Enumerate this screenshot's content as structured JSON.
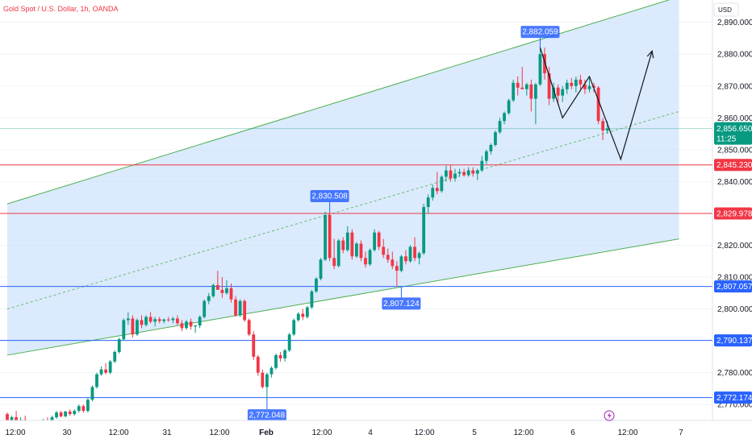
{
  "header": {
    "symbol_title": "Gold Spot / U.S. Dollar, 1h, OANDA"
  },
  "axis": {
    "currency": "USD"
  },
  "chart_data": {
    "type": "candlestick",
    "title": "Gold Spot / U.S. Dollar, 1h, OANDA",
    "ylabel": "USD",
    "ylim": [
      2765,
      2897
    ],
    "y_ticks": [
      "2,770.000",
      "2,780.000",
      "2,790.000",
      "2,800.000",
      "2,810.000",
      "2,820.000",
      "2,830.000",
      "2,840.000",
      "2,850.000",
      "2,860.000",
      "2,870.000",
      "2,880.000",
      "2,890.000"
    ],
    "x_ticks": [
      "12:00",
      "30",
      "12:00",
      "31",
      "12:00",
      "Feb",
      "12:00",
      "4",
      "12:00",
      "5",
      "12:00",
      "6",
      "12:00",
      "7"
    ],
    "current_price": {
      "value": "2,856.650",
      "countdown": "11:25"
    },
    "horizontal_levels": [
      {
        "value": 2845.23,
        "label": "2,845.230",
        "color": "#f23645"
      },
      {
        "value": 2829.978,
        "label": "2,829.978",
        "color": "#f23645"
      },
      {
        "value": 2807.057,
        "label": "2,807.057",
        "color": "#2962ff"
      },
      {
        "value": 2790.137,
        "label": "2,790.137",
        "color": "#2962ff"
      },
      {
        "value": 2772.174,
        "label": "2,772.174",
        "color": "#2962ff"
      }
    ],
    "callouts": [
      {
        "label": "2,882.059",
        "value": 2882.059,
        "bar": 119
      },
      {
        "label": "2,830.508",
        "value": 2830.508,
        "bar": 72
      },
      {
        "label": "2,807.124",
        "value": 2807.124,
        "bar": 88
      },
      {
        "label": "2,772.048",
        "value": 2772.048,
        "bar": 58
      }
    ],
    "candles": [
      [
        2767,
        2767.5,
        2763,
        2765
      ],
      [
        2765,
        2766.5,
        2764,
        2766
      ],
      [
        2766,
        2768,
        2764.5,
        2764.8
      ],
      [
        2764.8,
        2766,
        2763.5,
        2765.2
      ],
      [
        2765.2,
        2766.5,
        2764,
        2764.5
      ],
      [
        2764.5,
        2765,
        2762,
        2763.2
      ],
      [
        2763.2,
        2764,
        2761.5,
        2762
      ],
      [
        2762,
        2764,
        2761,
        2763.5
      ],
      [
        2763.5,
        2765.5,
        2763,
        2765
      ],
      [
        2765,
        2766,
        2764,
        2764.8
      ],
      [
        2764.8,
        2766.5,
        2764,
        2766
      ],
      [
        2766,
        2768,
        2765.5,
        2767.5
      ],
      [
        2767.5,
        2768,
        2766,
        2766.3
      ],
      [
        2766.3,
        2768,
        2766,
        2767.8
      ],
      [
        2767.8,
        2768.5,
        2766.5,
        2767
      ],
      [
        2767,
        2768.5,
        2766.5,
        2768
      ],
      [
        2768,
        2770,
        2767.5,
        2769.5
      ],
      [
        2769.5,
        2770,
        2767.5,
        2768
      ],
      [
        2768,
        2772,
        2767.5,
        2771.5
      ],
      [
        2771.5,
        2776,
        2771,
        2775.5
      ],
      [
        2775.5,
        2780,
        2775,
        2779.5
      ],
      [
        2779.5,
        2782,
        2779,
        2781
      ],
      [
        2781,
        2783,
        2779.5,
        2780
      ],
      [
        2780,
        2784,
        2779.5,
        2783.5
      ],
      [
        2783.5,
        2787,
        2783,
        2786.5
      ],
      [
        2786.5,
        2791,
        2786,
        2790.5
      ],
      [
        2790.5,
        2797,
        2790,
        2796.5
      ],
      [
        2796.5,
        2799,
        2795,
        2797
      ],
      [
        2797,
        2798,
        2791,
        2792
      ],
      [
        2792,
        2797,
        2791.5,
        2796.5
      ],
      [
        2796.5,
        2798,
        2794,
        2795
      ],
      [
        2795,
        2798,
        2794.5,
        2797.5
      ],
      [
        2797.5,
        2799,
        2795.5,
        2796
      ],
      [
        2796,
        2797.5,
        2794.5,
        2796.8
      ],
      [
        2796.8,
        2797.5,
        2795.5,
        2796.2
      ],
      [
        2796.2,
        2797,
        2795.5,
        2796.7
      ],
      [
        2796.7,
        2797.5,
        2796,
        2796.5
      ],
      [
        2796.5,
        2797.5,
        2795.5,
        2797
      ],
      [
        2797,
        2798,
        2795,
        2795.5
      ],
      [
        2795.5,
        2796.5,
        2793,
        2794
      ],
      [
        2794,
        2796.5,
        2793.5,
        2796
      ],
      [
        2796,
        2797,
        2793.5,
        2794.5
      ],
      [
        2794.5,
        2795,
        2792.5,
        2794.8
      ],
      [
        2794.8,
        2798,
        2794,
        2797.5
      ],
      [
        2797.5,
        2803,
        2797,
        2802.5
      ],
      [
        2802.5,
        2805,
        2801.5,
        2804
      ],
      [
        2804,
        2808,
        2803.5,
        2807.5
      ],
      [
        2807.5,
        2812,
        2806.5,
        2806
      ],
      [
        2806,
        2810,
        2803.5,
        2805
      ],
      [
        2805,
        2809,
        2804.5,
        2806.5
      ],
      [
        2806.5,
        2808,
        2802,
        2803
      ],
      [
        2803,
        2804,
        2797.5,
        2798
      ],
      [
        2798,
        2803,
        2797.5,
        2802.5
      ],
      [
        2802.5,
        2803,
        2796,
        2796.5
      ],
      [
        2796.5,
        2797,
        2791.5,
        2792
      ],
      [
        2792,
        2793,
        2784,
        2785
      ],
      [
        2785,
        2785.5,
        2779,
        2780
      ],
      [
        2780,
        2781,
        2775,
        2775.5
      ],
      [
        2775.5,
        2780,
        2772,
        2779.5
      ],
      [
        2779.5,
        2782,
        2778.5,
        2781.5
      ],
      [
        2781.5,
        2786,
        2781,
        2785.5
      ],
      [
        2785.5,
        2786.5,
        2783.5,
        2784.5
      ],
      [
        2784.5,
        2787.5,
        2783.5,
        2787
      ],
      [
        2787,
        2792.5,
        2786.5,
        2792
      ],
      [
        2792,
        2797,
        2791.5,
        2796.5
      ],
      [
        2796.5,
        2799,
        2796,
        2798.5
      ],
      [
        2798.5,
        2800,
        2796.5,
        2797.5
      ],
      [
        2797.5,
        2801,
        2797,
        2800.5
      ],
      [
        2800.5,
        2806,
        2800,
        2805.5
      ],
      [
        2805.5,
        2810,
        2805,
        2809.5
      ],
      [
        2809.5,
        2816,
        2809,
        2815.5
      ],
      [
        2815.5,
        2830.5,
        2815,
        2829.5
      ],
      [
        2829.5,
        2830.5,
        2815,
        2816
      ],
      [
        2816,
        2822,
        2812.5,
        2813.5
      ],
      [
        2813.5,
        2822,
        2813,
        2821.5
      ],
      [
        2821.5,
        2822.5,
        2817.5,
        2818.5
      ],
      [
        2818.5,
        2826,
        2818,
        2824
      ],
      [
        2824,
        2825,
        2815.5,
        2816.5
      ],
      [
        2816.5,
        2821,
        2816,
        2820.5
      ],
      [
        2820.5,
        2821.5,
        2815,
        2816
      ],
      [
        2816,
        2818,
        2813,
        2814
      ],
      [
        2814,
        2819,
        2813.5,
        2818.5
      ],
      [
        2818.5,
        2825,
        2818,
        2824
      ],
      [
        2824,
        2824.5,
        2818.5,
        2819.5
      ],
      [
        2819.5,
        2822,
        2816,
        2817
      ],
      [
        2817,
        2819,
        2814.5,
        2815.5
      ],
      [
        2815.5,
        2818,
        2812.5,
        2813.5
      ],
      [
        2813.5,
        2815,
        2807.1,
        2812
      ],
      [
        2812,
        2817,
        2811.5,
        2816.5
      ],
      [
        2816.5,
        2818.5,
        2814,
        2815
      ],
      [
        2815,
        2820,
        2814.5,
        2819.5
      ],
      [
        2819.5,
        2822.5,
        2815,
        2816
      ],
      [
        2816,
        2818,
        2814,
        2817.5
      ],
      [
        2817.5,
        2833,
        2817,
        2832
      ],
      [
        2832,
        2836,
        2830,
        2835
      ],
      [
        2835,
        2839,
        2834,
        2838
      ],
      [
        2838,
        2843,
        2836,
        2837
      ],
      [
        2837,
        2842,
        2836.5,
        2841.5
      ],
      [
        2841.5,
        2845,
        2840,
        2843.5
      ],
      [
        2843.5,
        2845.2,
        2840,
        2841
      ],
      [
        2841,
        2844,
        2840,
        2842.5
      ],
      [
        2842.5,
        2844,
        2841.5,
        2843
      ],
      [
        2843,
        2844,
        2841.5,
        2842
      ],
      [
        2842,
        2844.5,
        2841.5,
        2843.5
      ],
      [
        2843.5,
        2844.5,
        2841.5,
        2842.5
      ],
      [
        2842.5,
        2844,
        2840.5,
        2843.5
      ],
      [
        2843.5,
        2848,
        2843,
        2846.5
      ],
      [
        2846.5,
        2850,
        2845.5,
        2849.5
      ],
      [
        2849.5,
        2852,
        2848.5,
        2851.5
      ],
      [
        2851.5,
        2856,
        2851,
        2855.5
      ],
      [
        2855.5,
        2860,
        2855,
        2859
      ],
      [
        2859,
        2862,
        2858,
        2861.5
      ],
      [
        2861.5,
        2866,
        2861,
        2865.5
      ],
      [
        2865.5,
        2872,
        2865,
        2871
      ],
      [
        2871,
        2873,
        2867,
        2869.5
      ],
      [
        2869.5,
        2876,
        2869,
        2869
      ],
      [
        2869,
        2871,
        2867,
        2870.5
      ],
      [
        2870.5,
        2872,
        2862,
        2866
      ],
      [
        2866,
        2871,
        2858,
        2870.5
      ],
      [
        2870.5,
        2882,
        2870,
        2880
      ],
      [
        2880,
        2882.059,
        2872,
        2874
      ],
      [
        2874,
        2876,
        2864,
        2866
      ],
      [
        2866,
        2871,
        2865,
        2869.5
      ],
      [
        2869.5,
        2870.5,
        2864,
        2867
      ],
      [
        2867,
        2870,
        2865,
        2869
      ],
      [
        2869,
        2872,
        2867.5,
        2871
      ],
      [
        2871,
        2872.5,
        2869,
        2870
      ],
      [
        2870,
        2873,
        2868,
        2872
      ],
      [
        2872,
        2873.5,
        2869,
        2870.5
      ],
      [
        2870.5,
        2872,
        2867.5,
        2869
      ],
      [
        2869,
        2873,
        2868,
        2870
      ],
      [
        2870,
        2871,
        2868,
        2869.5
      ],
      [
        2869.5,
        2870,
        2858,
        2859
      ],
      [
        2859,
        2860,
        2853,
        2856
      ],
      [
        2856,
        2859,
        2855,
        2856.65
      ]
    ],
    "projection_path": [
      [
        119,
        2882.059
      ],
      [
        124,
        2860
      ],
      [
        130,
        2873
      ],
      [
        137,
        2847
      ],
      [
        144,
        2881
      ]
    ],
    "channel": {
      "upper": [
        [
          0,
          2833
        ],
        [
          150,
          2898
        ]
      ],
      "lower": [
        [
          0,
          2785.5
        ],
        [
          150,
          2822
        ]
      ],
      "mid": [
        [
          0,
          2800
        ],
        [
          150,
          2862
        ]
      ]
    }
  }
}
